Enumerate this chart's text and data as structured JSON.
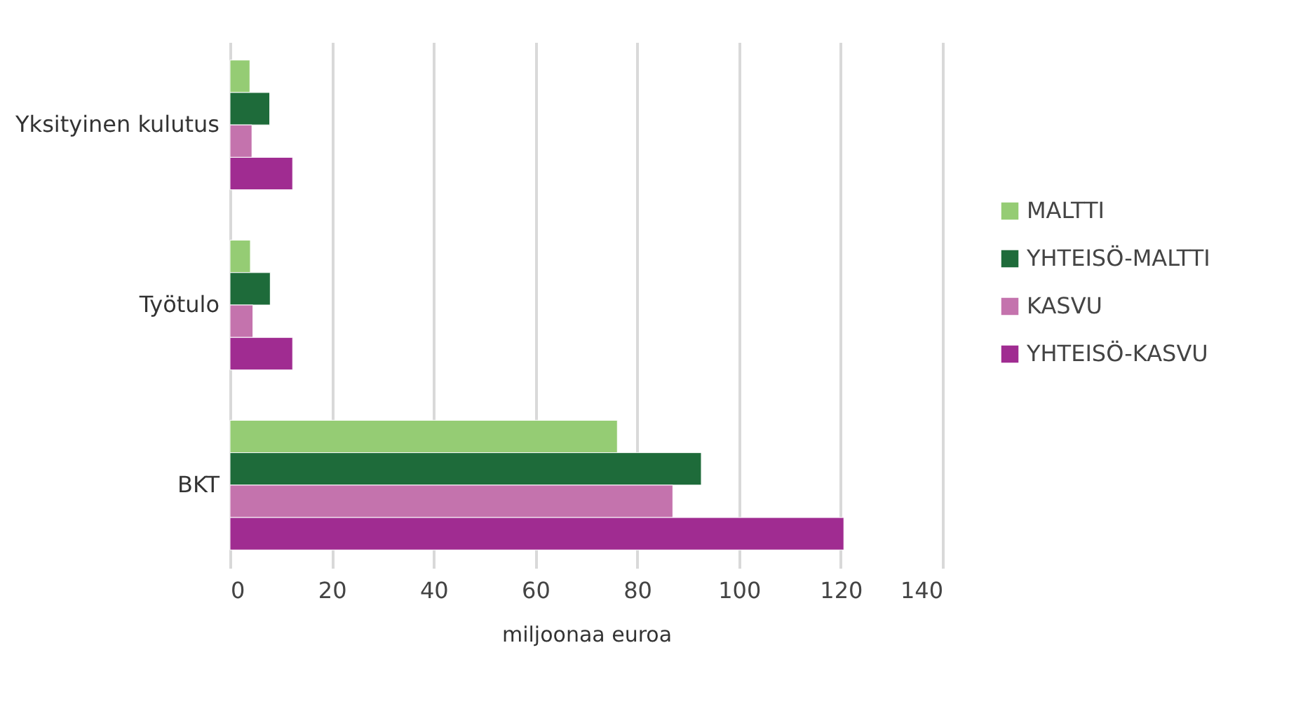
{
  "chart_data": {
    "type": "bar",
    "orientation": "horizontal",
    "xlabel": "miljoonaa euroa",
    "categories": [
      "Yksityinen kulutus",
      "Työtulo",
      "BKT"
    ],
    "series": [
      {
        "name": "MALTTI",
        "color": "#95cc74",
        "values": [
          3.9,
          4,
          76.1
        ]
      },
      {
        "name": "YHTEISÖ-MALTTI",
        "color": "#1e6b3a",
        "values": [
          7.8,
          7.9,
          92.6
        ]
      },
      {
        "name": "KASVU",
        "color": "#c473ad",
        "values": [
          4.3,
          4.5,
          87
        ]
      },
      {
        "name": "YHTEISÖ-KASVU",
        "color": "#a02c91",
        "values": [
          12.3,
          12.3,
          120.6
        ]
      }
    ],
    "xlim": [
      0,
      140
    ],
    "xticks": [
      0,
      20,
      40,
      60,
      80,
      100,
      120,
      140
    ],
    "grid": "x",
    "legend": "right"
  }
}
